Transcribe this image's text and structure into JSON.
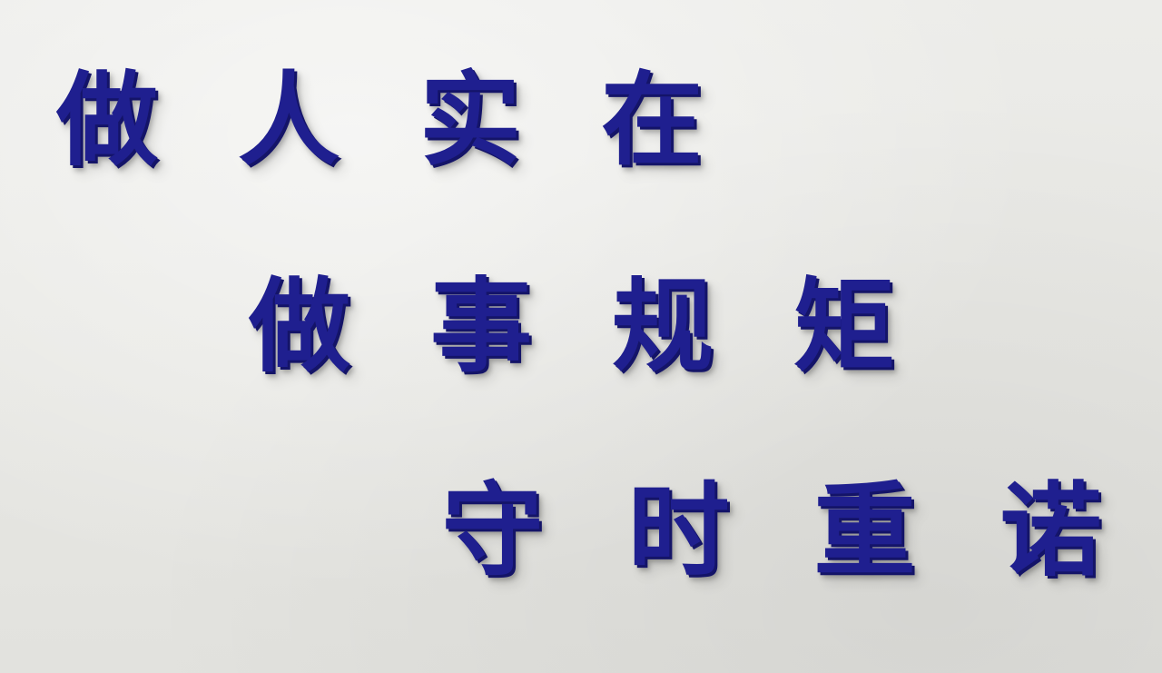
{
  "sign": {
    "lines": [
      {
        "chars": [
          "做",
          "人",
          "实",
          "在"
        ]
      },
      {
        "chars": [
          "做",
          "事",
          "规",
          "矩"
        ]
      },
      {
        "chars": [
          "守",
          "时",
          "重",
          "诺"
        ]
      }
    ]
  },
  "colors": {
    "wall": "#e9e9e6",
    "letters": "#1f1f8f",
    "letter_edge": "#141468"
  }
}
